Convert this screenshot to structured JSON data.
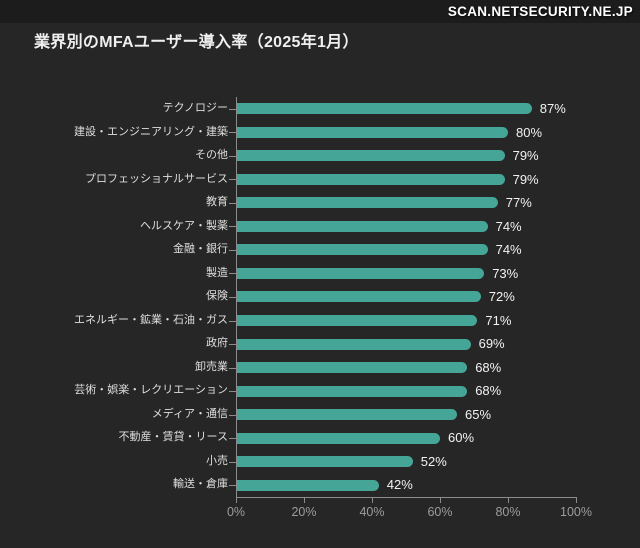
{
  "watermark": {
    "text": "SCAN.NETSECURITY.NE.JP"
  },
  "title": "業界別のMFAユーザー導入率（2025年1月）",
  "colors": {
    "background": "#262626",
    "watermark_band": "#1c1c1c",
    "bar": "#45a596",
    "axis_line": "#8c8c8c",
    "category_label": "#dedede",
    "value_label": "#f2f2f2",
    "axis_tick_label": "#9c9c9c",
    "title_text": "#efefef"
  },
  "chart_data": {
    "type": "bar",
    "orientation": "horizontal",
    "title": "業界別のMFAユーザー導入率（2025年1月）",
    "categories": [
      "テクノロジー",
      "建設・エンジニアリング・建築",
      "その他",
      "プロフェッショナルサービス",
      "教育",
      "ヘルスケア・製薬",
      "金融・銀行",
      "製造",
      "保険",
      "エネルギー・鉱業・石油・ガス",
      "政府",
      "卸売業",
      "芸術・娯楽・レクリエーション",
      "メディア・通信",
      "不動産・賃貸・リース",
      "小売",
      "輸送・倉庫"
    ],
    "values": [
      87,
      80,
      79,
      79,
      77,
      74,
      74,
      73,
      72,
      71,
      69,
      68,
      68,
      65,
      60,
      52,
      42
    ],
    "value_suffix": "%",
    "xlim": [
      0,
      100
    ],
    "x_ticks": [
      0,
      20,
      40,
      60,
      80,
      100
    ],
    "x_tick_labels": [
      "0%",
      "20%",
      "40%",
      "60%",
      "80%",
      "100%"
    ],
    "grid": false,
    "legend": false
  }
}
